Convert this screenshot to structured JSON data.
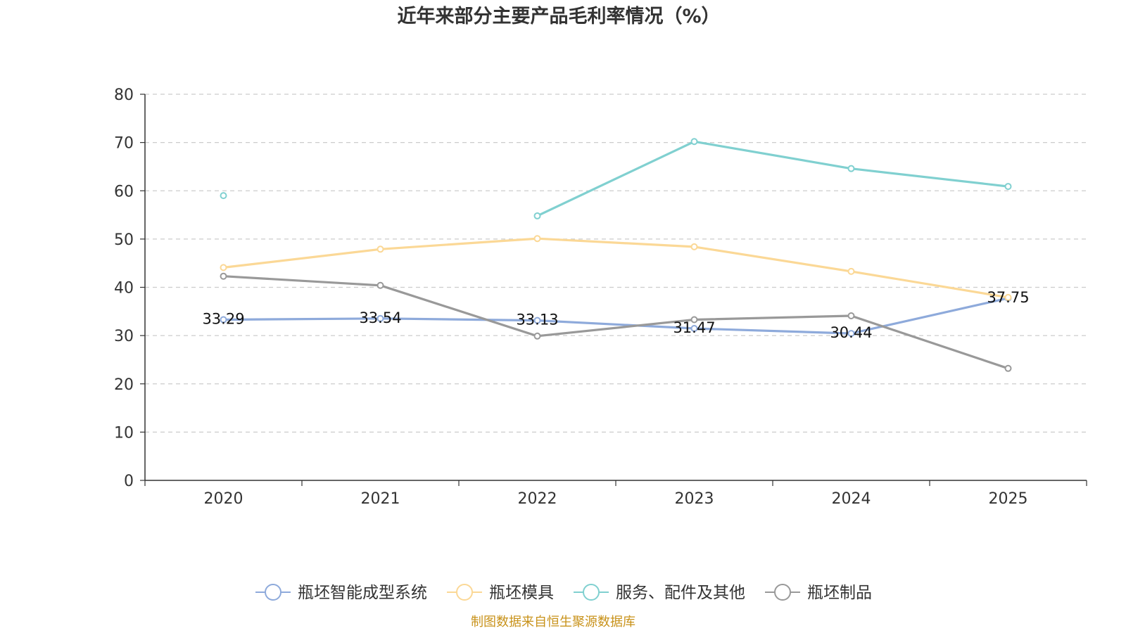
{
  "colors": {
    "axis": "#333333",
    "grid": "#cccccc",
    "source": "#c8921a"
  },
  "source_note": "制图数据来自恒生聚源数据库",
  "chart_data": {
    "type": "line",
    "title": "近年来部分主要产品毛利率情况（%）",
    "categories": [
      "2020",
      "2021",
      "2022",
      "2023",
      "2024",
      "2025"
    ],
    "ylim": [
      0,
      80
    ],
    "yticks": [
      0,
      10,
      20,
      30,
      40,
      50,
      60,
      70,
      80
    ],
    "grid": true,
    "legend_position": "bottom-center",
    "series": [
      {
        "name": "瓶坯智能成型系统",
        "color": "#8eaadb",
        "values": [
          33.29,
          33.54,
          33.13,
          31.47,
          30.44,
          37.75
        ],
        "labels": [
          "33.29",
          "33.54",
          "33.13",
          "31.47",
          "30.44",
          "37.75"
        ]
      },
      {
        "name": "瓶坯模具",
        "color": "#fbd896",
        "values": [
          44.1,
          47.9,
          50.1,
          48.4,
          43.3,
          37.9
        ],
        "labels": null
      },
      {
        "name": "服务、配件及其他",
        "color": "#80d0d0",
        "values": [
          59.0,
          null,
          54.8,
          70.2,
          64.6,
          60.9
        ],
        "labels": null
      },
      {
        "name": "瓶坯制品",
        "color": "#999999",
        "values": [
          42.3,
          40.4,
          29.9,
          33.3,
          34.1,
          23.2
        ],
        "labels": null
      }
    ]
  }
}
